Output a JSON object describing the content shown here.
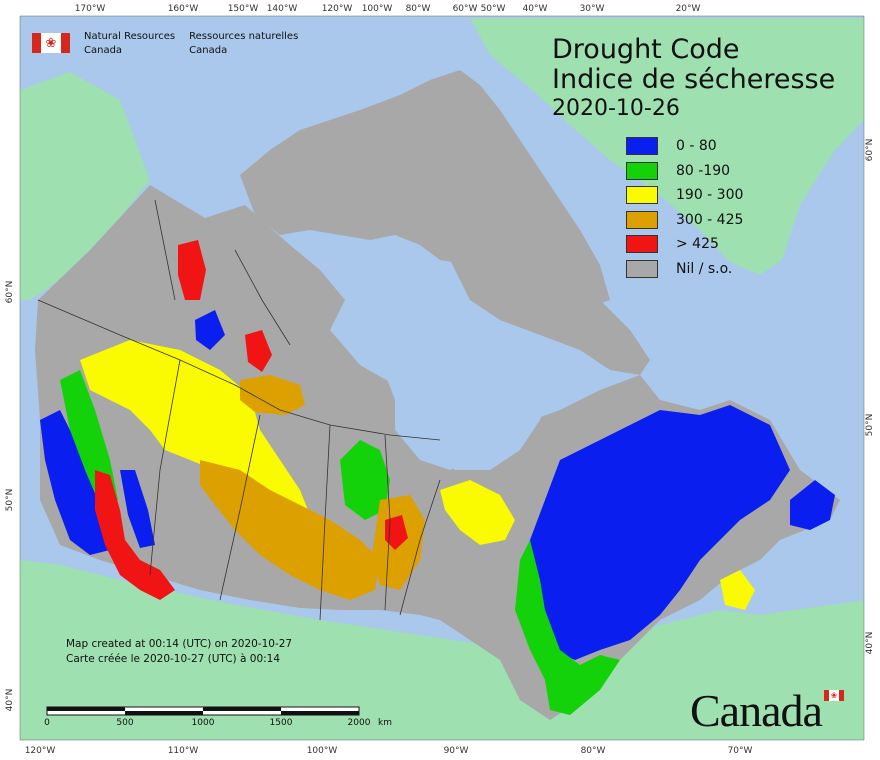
{
  "title_en": "Drought Code",
  "title_fr": "Indice de sécheresse",
  "date": "2020-10-26",
  "agency": {
    "name_en_line1": "Natural Resources",
    "name_en_line2": "Canada",
    "name_fr_line1": "Ressources naturelles",
    "name_fr_line2": "Canada"
  },
  "legend": [
    {
      "label": "0 - 80",
      "color": "#0a1ef0"
    },
    {
      "label": "80 -190",
      "color": "#14d20a"
    },
    {
      "label": "190 - 300",
      "color": "#fafa00"
    },
    {
      "label": "300 - 425",
      "color": "#dca000"
    },
    {
      "label": "> 425",
      "color": "#f01414"
    },
    {
      "label": "Nil / s.o.",
      "color": "#a8a8a8"
    }
  ],
  "notes": {
    "line1": "Map created at 00:14 (UTC) on 2020-10-27",
    "line2": "Carte créée le 2020-10-27 (UTC) à 00:14"
  },
  "scale": {
    "ticks": [
      "0",
      "500",
      "1000",
      "1500",
      "2000"
    ],
    "unit": "km"
  },
  "wordmark": "Canada",
  "graticule": {
    "top": [
      "170°W",
      "160°W",
      "150°W",
      "140°W",
      "120°W",
      "100°W",
      "80°W",
      "60°W",
      "50°W",
      "40°W",
      "30°W",
      "20°W"
    ],
    "bottom": [
      "120°W",
      "110°W",
      "100°W",
      "90°W",
      "80°W",
      "70°W"
    ],
    "left": [
      "60°N",
      "50°N",
      "40°N"
    ],
    "right": [
      "60°N",
      "50°N",
      "40°N"
    ]
  },
  "colors": {
    "ocean": "#a9c8ec",
    "other_land": "#9ee0b0",
    "nil": "#a8a8a8"
  }
}
